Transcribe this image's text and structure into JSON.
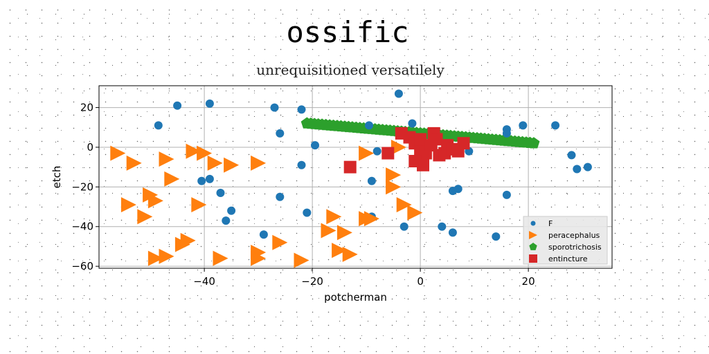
{
  "chart_data": {
    "type": "scatter",
    "title": "ossific",
    "subtitle": "unrequisitioned versatilely",
    "xlabel": "potcherman",
    "ylabel": "etch",
    "xlim": [
      -59.5,
      35.5
    ],
    "ylim": [
      -61,
      31
    ],
    "xticks": [
      -40,
      -20,
      0,
      20
    ],
    "yticks": [
      -60,
      -40,
      -20,
      0,
      20
    ],
    "grid": true,
    "legend_position": "lower-right",
    "series": [
      {
        "name": "F",
        "marker": "circle",
        "color": "#1f77b4",
        "points": [
          [
            -48.5,
            11
          ],
          [
            -45,
            21
          ],
          [
            -39,
            22
          ],
          [
            -27,
            20
          ],
          [
            -22,
            19
          ],
          [
            -4,
            27
          ],
          [
            -26,
            7
          ],
          [
            -19.5,
            1
          ],
          [
            -22,
            -9
          ],
          [
            -1.5,
            12
          ],
          [
            -9.5,
            11
          ],
          [
            -8,
            -2
          ],
          [
            -40.5,
            -17
          ],
          [
            -39,
            -16
          ],
          [
            -37,
            -23
          ],
          [
            -35,
            -32
          ],
          [
            -36,
            -37
          ],
          [
            -26,
            -25
          ],
          [
            -21,
            -33
          ],
          [
            -29,
            -44
          ],
          [
            -9,
            -17
          ],
          [
            -9,
            -35
          ],
          [
            -3,
            -40
          ],
          [
            4,
            -40
          ],
          [
            6,
            -22
          ],
          [
            7,
            -21
          ],
          [
            6,
            -43
          ],
          [
            9,
            -2
          ],
          [
            14,
            -45
          ],
          [
            16,
            9
          ],
          [
            16,
            7
          ],
          [
            16,
            -24
          ],
          [
            19,
            11
          ],
          [
            25,
            11
          ],
          [
            28,
            -4
          ],
          [
            29,
            -11
          ],
          [
            31,
            -10
          ]
        ]
      },
      {
        "name": "peracephalus",
        "marker": "triangle-right",
        "color": "#ff7f0e",
        "points": [
          [
            -56,
            -3
          ],
          [
            -53,
            -8
          ],
          [
            -47,
            -6
          ],
          [
            -46,
            -16
          ],
          [
            -42,
            -2
          ],
          [
            -40,
            -3
          ],
          [
            -38,
            -8
          ],
          [
            -35,
            -9
          ],
          [
            -30,
            -8
          ],
          [
            -54,
            -29
          ],
          [
            -50,
            -24
          ],
          [
            -49,
            -27
          ],
          [
            -51,
            -35
          ],
          [
            -41,
            -29
          ],
          [
            -49,
            -56
          ],
          [
            -47,
            -55
          ],
          [
            -44,
            -49
          ],
          [
            -43,
            -47
          ],
          [
            -37,
            -56
          ],
          [
            -30,
            -53
          ],
          [
            -30,
            -56
          ],
          [
            -26,
            -48
          ],
          [
            -22,
            -57
          ],
          [
            -17,
            -42
          ],
          [
            -16,
            -35
          ],
          [
            -15,
            -52
          ],
          [
            -14,
            -43
          ],
          [
            -13,
            -54
          ],
          [
            -10,
            -36
          ],
          [
            -9,
            -36
          ],
          [
            -10,
            -3
          ],
          [
            -4,
            0
          ],
          [
            -5,
            -14
          ],
          [
            -5,
            -20
          ],
          [
            -3,
            -29
          ],
          [
            -1,
            -33
          ]
        ]
      },
      {
        "name": "sporotrichosis",
        "marker": "pentagon",
        "color": "#2ca02c",
        "line": [
          [
            -21,
            12
          ],
          [
            21,
            2
          ]
        ]
      },
      {
        "name": "entincture",
        "marker": "square",
        "color": "#d62728",
        "points": [
          [
            -13,
            -10
          ],
          [
            -6,
            -3
          ],
          [
            -3.5,
            7
          ],
          [
            -2,
            5
          ],
          [
            -1,
            2
          ],
          [
            0,
            -2
          ],
          [
            0,
            4
          ],
          [
            1,
            -3
          ],
          [
            2,
            1
          ],
          [
            2.5,
            7
          ],
          [
            3,
            4
          ],
          [
            3.5,
            -4
          ],
          [
            4.5,
            -3
          ],
          [
            5,
            1
          ],
          [
            6,
            -1
          ],
          [
            7,
            -2
          ],
          [
            8,
            2
          ],
          [
            -1,
            -7
          ],
          [
            0.5,
            -9
          ]
        ]
      }
    ]
  }
}
